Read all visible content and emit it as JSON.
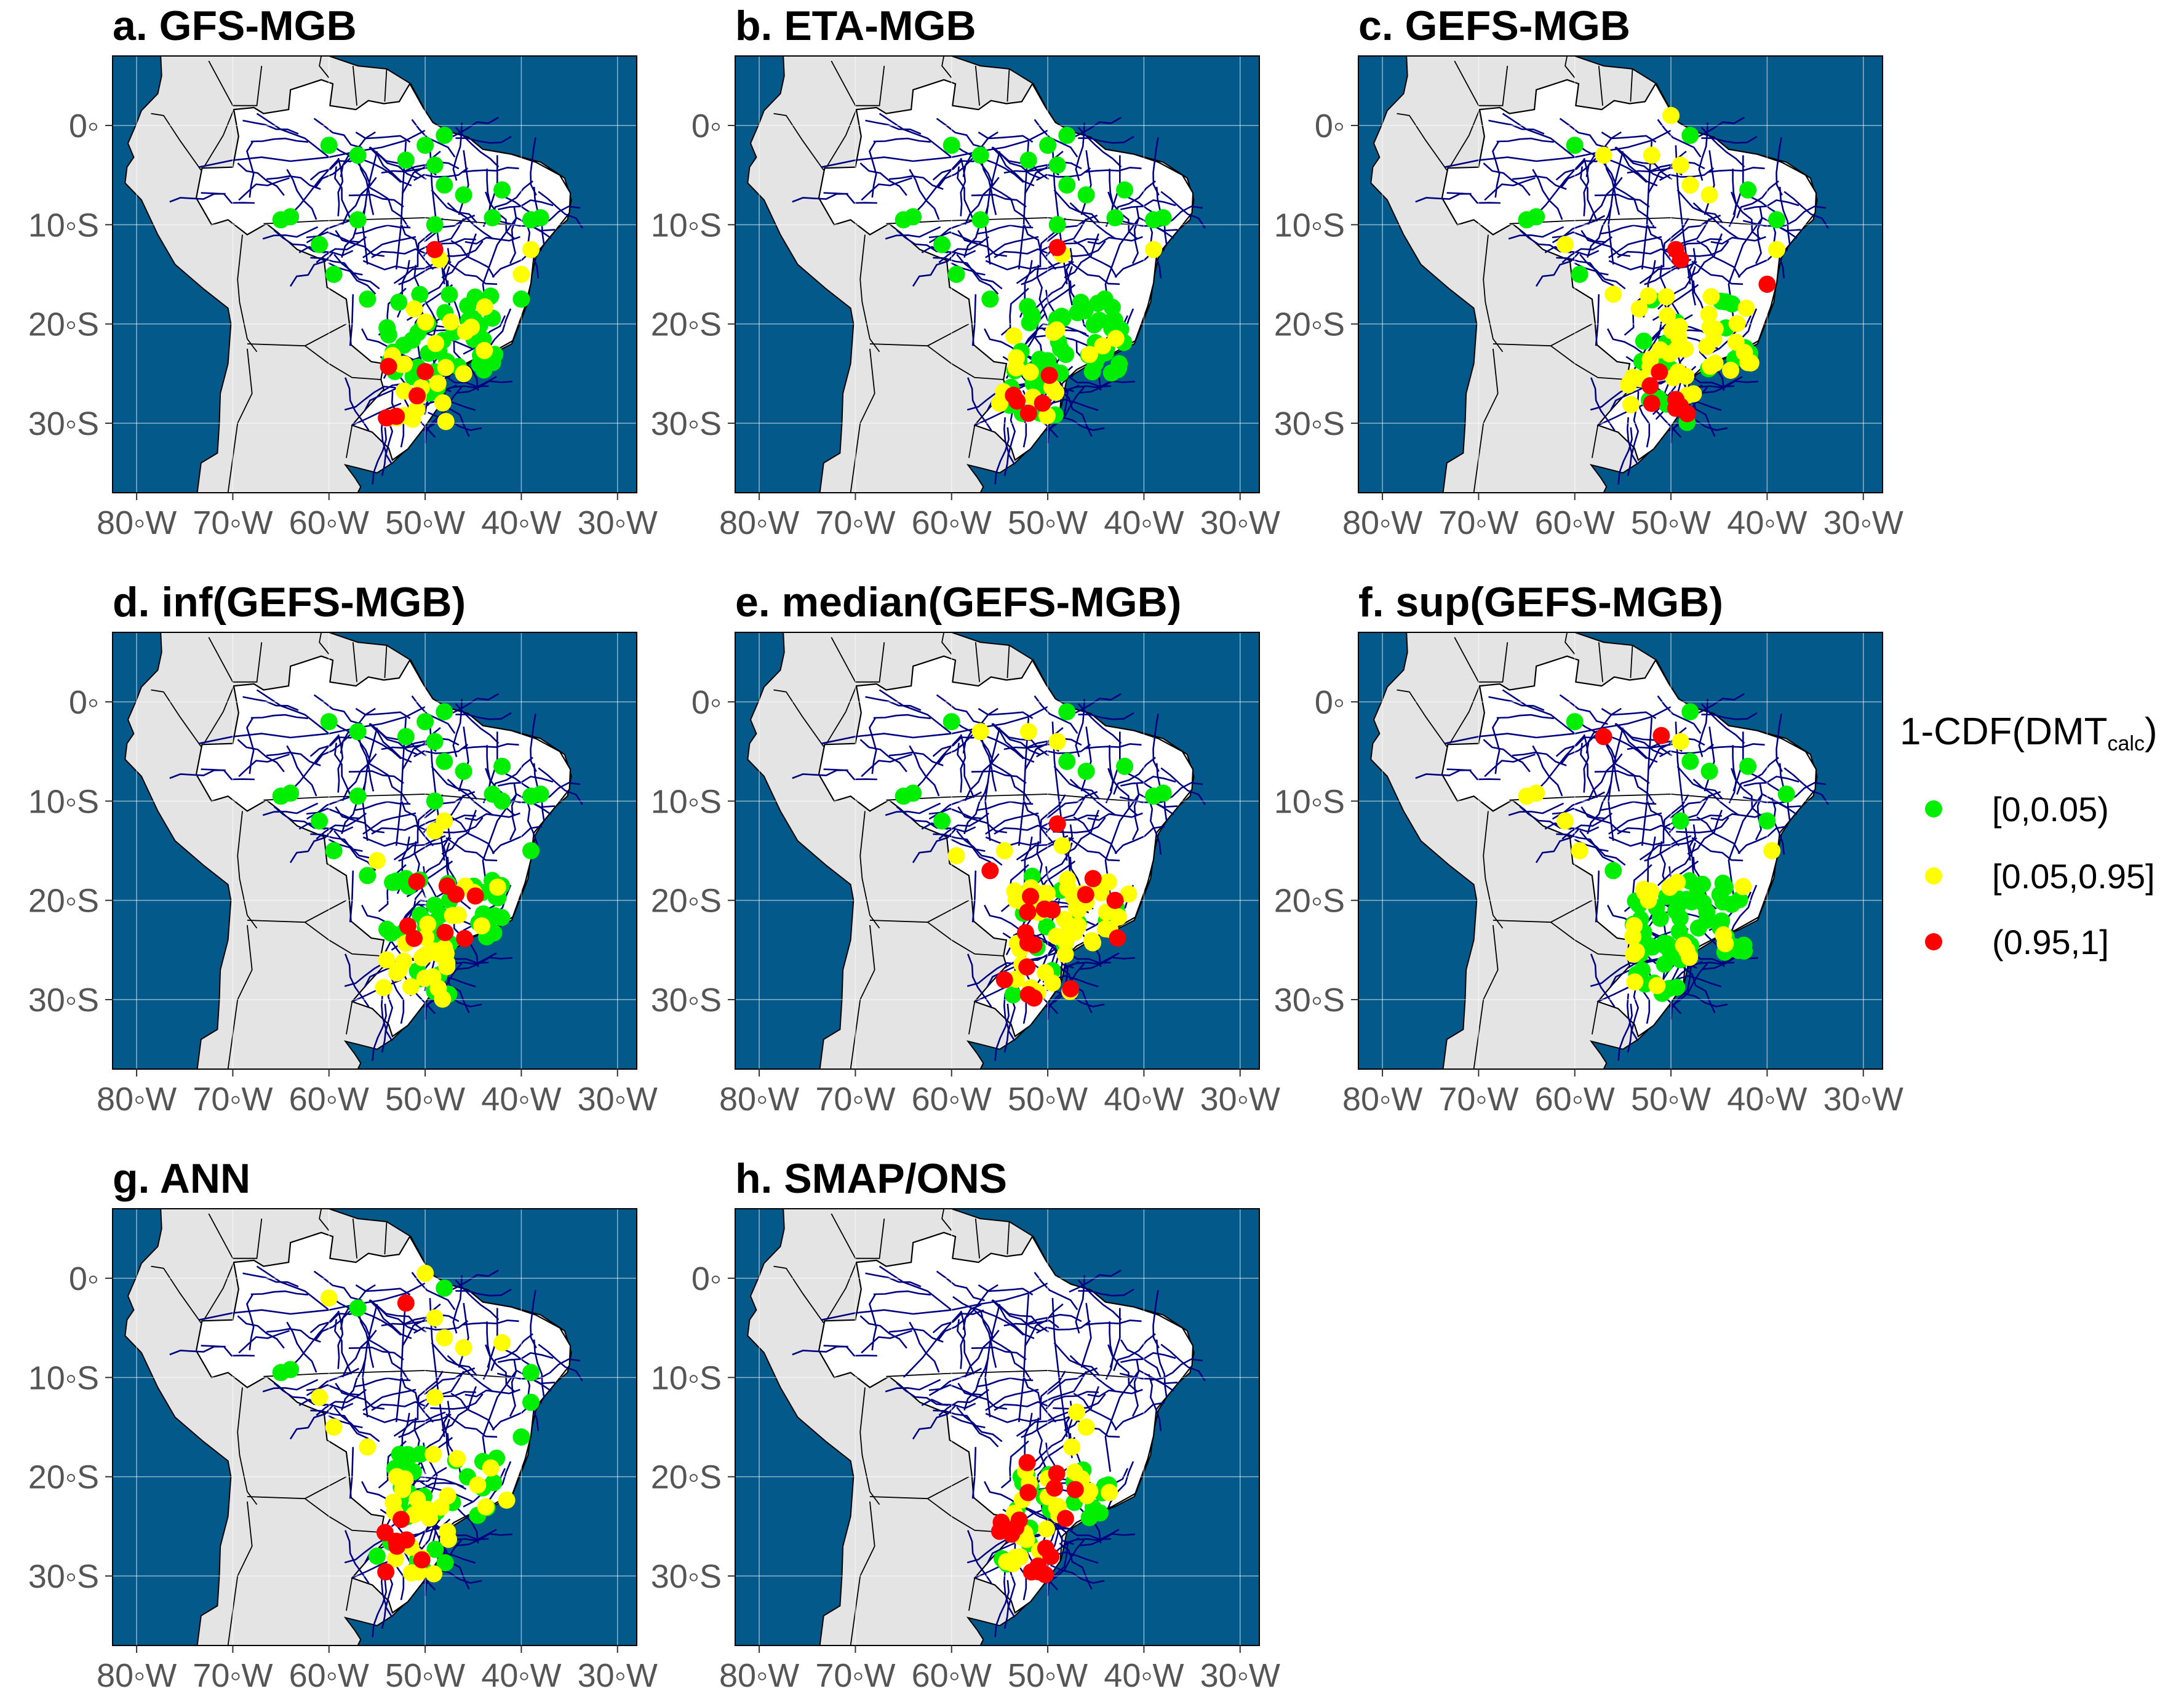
{
  "panels": [
    {
      "id": "a",
      "title": "a.  GFS-MGB"
    },
    {
      "id": "b",
      "title": "b.  ETA-MGB"
    },
    {
      "id": "c",
      "title": "c.  GEFS-MGB"
    },
    {
      "id": "d",
      "title": "d.  inf(GEFS-MGB)"
    },
    {
      "id": "e",
      "title": "e.  median(GEFS-MGB)"
    },
    {
      "id": "f",
      "title": "f.  sup(GEFS-MGB)"
    },
    {
      "id": "g",
      "title": "g.  ANN"
    },
    {
      "id": "h",
      "title": "h.  SMAP/ONS"
    }
  ],
  "axes": {
    "x_ticks": [
      "80◦W",
      "70◦W",
      "60◦W",
      "50◦W",
      "40◦W",
      "30◦W"
    ],
    "x_values": [
      -80,
      -70,
      -60,
      -50,
      -40,
      -30
    ],
    "y_ticks": [
      "0◦",
      "10◦S",
      "20◦S",
      "30◦S"
    ],
    "y_values": [
      0,
      -10,
      -20,
      -30
    ],
    "lon_range": [
      -82.5,
      -28.0
    ],
    "lat_range": [
      -37.0,
      7.0
    ]
  },
  "legend": {
    "title_main": "1-CDF(DMT",
    "title_sub": "calc",
    "title_end": ")",
    "items": [
      {
        "label": "[0,0.05)",
        "color": "#00ee00"
      },
      {
        "label": "[0.05,0.95]",
        "color": "#ffff00"
      },
      {
        "label": "(0.95,1]",
        "color": "#ff0000"
      }
    ]
  },
  "colors": {
    "ocean": "#02598a",
    "land": "#e4e4e4",
    "brazil": "#ffffff",
    "river": "#000080",
    "green": "#00ee00",
    "yellow": "#ffff00",
    "red": "#ff0000"
  }
}
